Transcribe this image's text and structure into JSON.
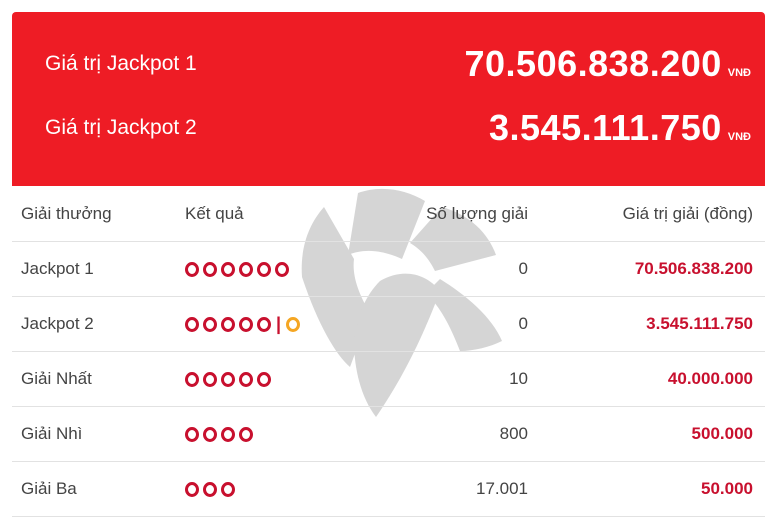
{
  "jackpots": [
    {
      "label": "Giá trị Jackpot 1",
      "amount": "70.506.838.200",
      "unit": "VNĐ"
    },
    {
      "label": "Giá trị Jackpot 2",
      "amount": "3.545.111.750",
      "unit": "VNĐ"
    }
  ],
  "table": {
    "headers": {
      "prize": "Giải thưởng",
      "result": "Kết quả",
      "count": "Số lượng giải",
      "value": "Giá trị giải (đồng)"
    },
    "rows": [
      {
        "prize": "Jackpot 1",
        "balls": 6,
        "extra_balls": 0,
        "count": "0",
        "value": "70.506.838.200"
      },
      {
        "prize": "Jackpot 2",
        "balls": 5,
        "extra_balls": 1,
        "count": "0",
        "value": "3.545.111.750"
      },
      {
        "prize": "Giải Nhất",
        "balls": 5,
        "extra_balls": 0,
        "count": "10",
        "value": "40.000.000"
      },
      {
        "prize": "Giải Nhì",
        "balls": 4,
        "extra_balls": 0,
        "count": "800",
        "value": "500.000"
      },
      {
        "prize": "Giải Ba",
        "balls": 3,
        "extra_balls": 0,
        "count": "17.001",
        "value": "50.000"
      }
    ]
  },
  "colors": {
    "banner": "#ee1c25",
    "ball": "#c8102e",
    "extra_ball": "#f5a623"
  },
  "icons": {
    "watermark": "star-logo-watermark-icon",
    "ball": "ball-icon"
  }
}
